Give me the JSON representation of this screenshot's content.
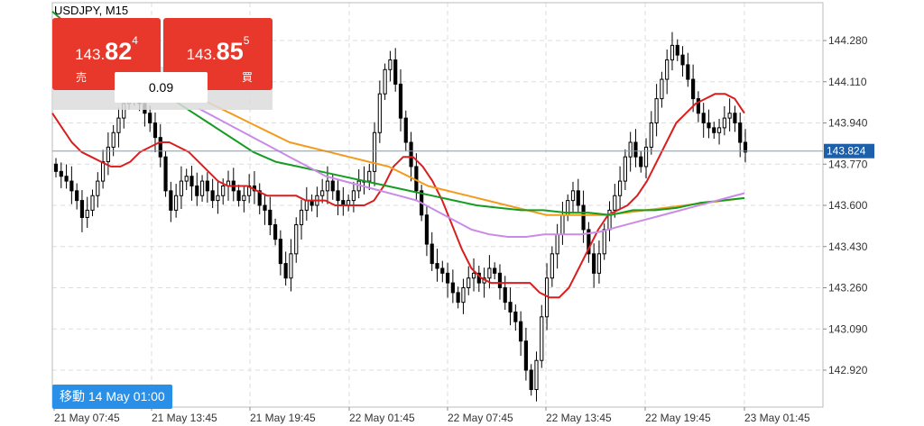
{
  "header": {
    "symbol": "USDJPY, M15"
  },
  "sell": {
    "label": "売",
    "price_small": "143.",
    "price_big": "82",
    "price_sup": "4"
  },
  "buy": {
    "label": "買",
    "price_small": "143.",
    "price_big": "85",
    "price_sup": "5"
  },
  "spread": "0.09",
  "goto_button": "移動 14 May 01:00",
  "current_price_label": "143.824",
  "colors": {
    "candle": "#000000",
    "ma_red": "#d81e1e",
    "ma_orange": "#f39b1d",
    "ma_green": "#159c21",
    "ma_violet": "#c98be6",
    "current_price": "#1d5fa8",
    "buttons": "#e8382b",
    "goto_button": "#2a8fe6"
  },
  "chart_data": {
    "type": "candlestick",
    "grid": true,
    "ylim": [
      142.8,
      144.4
    ],
    "y_ticks": [
      "144.280",
      "144.110",
      "143.940",
      "143.770",
      "143.600",
      "143.430",
      "143.260",
      "143.090",
      "142.920"
    ],
    "y_tick_values": [
      144.28,
      144.11,
      143.94,
      143.77,
      143.6,
      143.43,
      143.26,
      143.09,
      142.92
    ],
    "x_ticks": [
      "21 May 07:45",
      "21 May 13:45",
      "21 May 19:45",
      "22 May 01:45",
      "22 May 07:45",
      "22 May 13:45",
      "22 May 19:45",
      "23 May 01:45"
    ],
    "current_price": 143.824,
    "close": [
      143.74,
      143.72,
      143.7,
      143.66,
      143.62,
      143.55,
      143.58,
      143.64,
      143.7,
      143.78,
      143.84,
      143.9,
      143.96,
      144.02,
      144.06,
      144.1,
      144.02,
      143.98,
      143.94,
      143.88,
      143.8,
      143.66,
      143.58,
      143.64,
      143.7,
      143.72,
      143.68,
      143.64,
      143.7,
      143.66,
      143.62,
      143.64,
      143.68,
      143.7,
      143.66,
      143.62,
      143.64,
      143.68,
      143.66,
      143.6,
      143.58,
      143.52,
      143.46,
      143.36,
      143.3,
      143.4,
      143.52,
      143.58,
      143.62,
      143.6,
      143.64,
      143.66,
      143.7,
      143.66,
      143.62,
      143.6,
      143.62,
      143.66,
      143.7,
      143.7,
      143.74,
      143.9,
      144.06,
      144.16,
      144.2,
      144.1,
      143.96,
      143.86,
      143.76,
      143.66,
      143.56,
      143.44,
      143.36,
      143.34,
      143.32,
      143.28,
      143.24,
      143.2,
      143.26,
      143.3,
      143.32,
      143.28,
      143.3,
      143.34,
      143.32,
      143.26,
      143.2,
      143.16,
      143.12,
      143.04,
      142.92,
      142.84,
      142.96,
      143.14,
      143.3,
      143.4,
      143.48,
      143.56,
      143.62,
      143.66,
      143.6,
      143.5,
      143.4,
      143.32,
      143.4,
      143.5,
      143.58,
      143.64,
      143.7,
      143.8,
      143.86,
      143.8,
      143.76,
      143.84,
      143.94,
      144.04,
      144.12,
      144.2,
      144.26,
      144.22,
      144.18,
      144.12,
      144.04,
      143.98,
      143.94,
      143.92,
      143.9,
      143.92,
      143.96,
      143.98,
      143.94,
      143.86,
      143.82
    ],
    "series": [
      {
        "values": [
          143.98,
          143.92,
          143.86,
          143.82,
          143.8,
          143.78,
          143.76,
          143.76,
          143.78,
          143.82,
          143.84,
          143.86,
          143.86,
          143.84,
          143.82,
          143.78,
          143.74,
          143.7,
          143.68,
          143.68,
          143.68,
          143.66,
          143.64,
          143.64,
          143.64,
          143.64,
          143.62,
          143.62,
          143.62,
          143.6,
          143.6,
          143.6,
          143.6,
          143.62,
          143.68,
          143.76,
          143.8,
          143.8,
          143.76,
          143.7,
          143.62,
          143.52,
          143.42,
          143.34,
          143.3,
          143.28,
          143.28,
          143.28,
          143.28,
          143.28,
          143.24,
          143.22,
          143.22,
          143.26,
          143.34,
          143.42,
          143.5,
          143.56,
          143.58,
          143.6,
          143.64,
          143.7,
          143.78,
          143.86,
          143.94,
          143.98,
          144.02,
          144.04,
          144.06,
          144.06,
          144.04,
          143.98
        ]
      },
      {
        "values": [
          144.34,
          144.3,
          144.26,
          144.22,
          144.18,
          144.14,
          144.1,
          144.06,
          144.02,
          143.98,
          143.94,
          143.9,
          143.86,
          143.84,
          143.82,
          143.8,
          143.78,
          143.76,
          143.72,
          143.68,
          143.66,
          143.64,
          143.62,
          143.6,
          143.58,
          143.56,
          143.56,
          143.56,
          143.56,
          143.57,
          143.58,
          143.59,
          143.6,
          143.61,
          143.62,
          143.63
        ]
      },
      {
        "values": [
          144.4,
          144.32,
          144.26,
          144.18,
          144.12,
          144.06,
          144.0,
          143.94,
          143.88,
          143.82,
          143.78,
          143.76,
          143.74,
          143.72,
          143.7,
          143.68,
          143.66,
          143.64,
          143.62,
          143.6,
          143.59,
          143.58,
          143.58,
          143.57,
          143.57,
          143.56,
          143.58,
          143.58,
          143.59,
          143.61,
          143.62,
          143.63
        ]
      },
      {
        "values": [
          144.0,
          143.96,
          143.92,
          143.88,
          143.84,
          143.8,
          143.76,
          143.72,
          143.7,
          143.68,
          143.66,
          143.64,
          143.62,
          143.58,
          143.54,
          143.5,
          143.48,
          143.47,
          143.47,
          143.48,
          143.48,
          143.48,
          143.49,
          143.51,
          143.53,
          143.55,
          143.57,
          143.59,
          143.61,
          143.63,
          143.65
        ]
      }
    ]
  }
}
